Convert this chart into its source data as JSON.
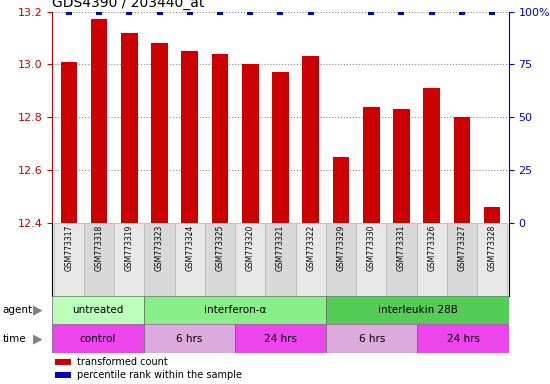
{
  "title": "GDS4390 / 203440_at",
  "samples": [
    "GSM773317",
    "GSM773318",
    "GSM773319",
    "GSM773323",
    "GSM773324",
    "GSM773325",
    "GSM773320",
    "GSM773321",
    "GSM773322",
    "GSM773329",
    "GSM773330",
    "GSM773331",
    "GSM773326",
    "GSM773327",
    "GSM773328"
  ],
  "red_values": [
    13.01,
    13.17,
    13.12,
    13.08,
    13.05,
    13.04,
    13.0,
    12.97,
    13.03,
    12.65,
    12.84,
    12.83,
    12.91,
    12.8,
    12.46
  ],
  "blue_show": [
    true,
    true,
    true,
    true,
    true,
    true,
    true,
    true,
    true,
    false,
    true,
    true,
    true,
    true,
    true
  ],
  "ylim_left": [
    12.4,
    13.2
  ],
  "ylim_right": [
    0,
    100
  ],
  "yticks_left": [
    12.4,
    12.6,
    12.8,
    13.0,
    13.2
  ],
  "yticks_right": [
    0,
    25,
    50,
    75,
    100
  ],
  "agent_groups": [
    {
      "label": "untreated",
      "start": 0,
      "end": 3,
      "color": "#bbffbb"
    },
    {
      "label": "interferon-α",
      "start": 3,
      "end": 9,
      "color": "#88ee88"
    },
    {
      "label": "interleukin 28B",
      "start": 9,
      "end": 15,
      "color": "#55cc55"
    }
  ],
  "time_groups": [
    {
      "label": "control",
      "start": 0,
      "end": 3,
      "color": "#ee44ee"
    },
    {
      "label": "6 hrs",
      "start": 3,
      "end": 6,
      "color": "#ddaadd"
    },
    {
      "label": "24 hrs",
      "start": 6,
      "end": 9,
      "color": "#ee44ee"
    },
    {
      "label": "6 hrs",
      "start": 9,
      "end": 12,
      "color": "#ddaadd"
    },
    {
      "label": "24 hrs",
      "start": 12,
      "end": 15,
      "color": "#ee44ee"
    }
  ],
  "bar_color": "#cc0000",
  "dot_color": "#0000cc",
  "background_color": "#ffffff",
  "grid_color": "#888888",
  "left_tick_color": "#cc0000",
  "right_tick_color": "#0000cc",
  "legend_items": [
    {
      "color": "#cc0000",
      "label": "transformed count"
    },
    {
      "color": "#0000cc",
      "label": "percentile rank within the sample"
    }
  ]
}
